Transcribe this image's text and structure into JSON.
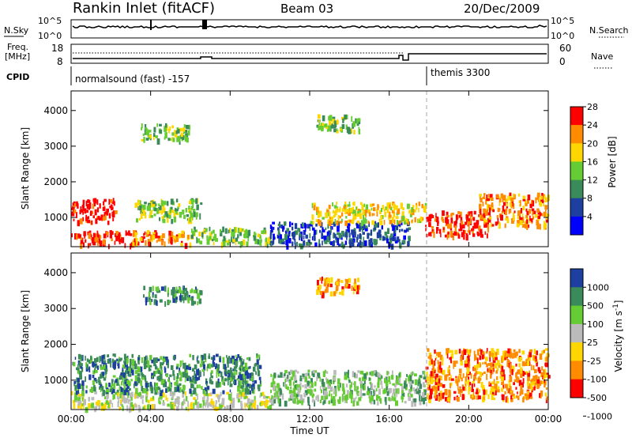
{
  "header": {
    "station": "Rankin Inlet (fitACF)",
    "beam": "Beam 03",
    "date": "20/Dec/2009"
  },
  "noise_panel": {
    "left_label": "N.Sky",
    "right_label": "N.Search",
    "left_ticks": [
      "10^5",
      "10^0"
    ],
    "right_ticks": [
      "10^5",
      "10^0"
    ]
  },
  "freq_panel": {
    "left_label_1": "Freq.",
    "left_label_2": "[MHz]",
    "right_label": "Nave",
    "left_ticks": [
      "18",
      "8"
    ],
    "right_ticks": [
      "60",
      "0"
    ]
  },
  "cpid_panel": {
    "label": "CPID",
    "modes": [
      {
        "name": "normalsound (fast) -157",
        "start": "00:00",
        "end": "18:00"
      },
      {
        "name": "themis 3300",
        "start": "18:00",
        "end": "24:00"
      }
    ]
  },
  "x_axis": {
    "label": "Time UT",
    "ticks": [
      "00:00",
      "04:00",
      "08:00",
      "12:00",
      "16:00",
      "20:00",
      "00:00"
    ]
  },
  "chart_data": [
    {
      "type": "heatmap",
      "quantity": "power",
      "ylabel": "Slant Range [km]",
      "xlim_hours": [
        0,
        24
      ],
      "ylim_km": [
        180,
        4550
      ],
      "y_ticks": [
        "1000",
        "2000",
        "3000",
        "4000"
      ],
      "colorbar_label": "Power [dB]",
      "colorbar_ticks": [
        "4",
        "8",
        "12",
        "16",
        "20",
        "24",
        "28"
      ],
      "colorbar_colors": [
        "#0000ff",
        "#1c3fa0",
        "#3a8a5a",
        "#66cc33",
        "#ffd700",
        "#ff8c00",
        "#ff0000"
      ],
      "regions": [
        {
          "t": [
            0.0,
            3.2
          ],
          "r": [
            250,
            650
          ],
          "level": 6
        },
        {
          "t": [
            0.0,
            2.2
          ],
          "r": [
            900,
            1550
          ],
          "level": 6
        },
        {
          "t": [
            3.0,
            6.0
          ],
          "r": [
            280,
            650
          ],
          "level": 5
        },
        {
          "t": [
            6.0,
            10.0
          ],
          "r": [
            300,
            750
          ],
          "level": 3
        },
        {
          "t": [
            3.2,
            6.5
          ],
          "r": [
            950,
            1550
          ],
          "level": 3
        },
        {
          "t": [
            3.5,
            6.0
          ],
          "r": [
            3200,
            3650
          ],
          "level": 3
        },
        {
          "t": [
            12.3,
            14.5
          ],
          "r": [
            3450,
            3900
          ],
          "level": 3
        },
        {
          "t": [
            10.0,
            17.0
          ],
          "r": [
            250,
            900
          ],
          "level": 1
        },
        {
          "t": [
            12.0,
            17.8
          ],
          "r": [
            900,
            1450
          ],
          "level": 4
        },
        {
          "t": [
            17.8,
            21.0
          ],
          "r": [
            500,
            1200
          ],
          "level": 6
        },
        {
          "t": [
            20.5,
            24.0
          ],
          "r": [
            800,
            1700
          ],
          "level": 5
        }
      ]
    },
    {
      "type": "heatmap",
      "quantity": "velocity",
      "ylabel": "Slant Range [km]",
      "xlim_hours": [
        0,
        24
      ],
      "ylim_km": [
        180,
        4550
      ],
      "y_ticks": [
        "1000",
        "2000",
        "3000",
        "4000"
      ],
      "colorbar_label": "Velocity [m s^-1]",
      "colorbar_ticks": [
        "1000",
        "500",
        "100",
        "25",
        "-25",
        "-100",
        "-500",
        "-1000"
      ],
      "colorbar_colors": [
        "#1c3fa0",
        "#3a8a5a",
        "#66cc33",
        "#bbbbbb",
        "#ffd700",
        "#ff8c00",
        "#ff0000"
      ],
      "regions": [
        {
          "t": [
            0.0,
            10.0
          ],
          "r": [
            250,
            700
          ],
          "level": 3
        },
        {
          "t": [
            0.0,
            9.5
          ],
          "r": [
            700,
            1750
          ],
          "level": 1
        },
        {
          "t": [
            3.5,
            6.5
          ],
          "r": [
            3200,
            3650
          ],
          "level": 1
        },
        {
          "t": [
            12.3,
            14.5
          ],
          "r": [
            3450,
            3900
          ],
          "level": 5
        },
        {
          "t": [
            10.0,
            17.8
          ],
          "r": [
            400,
            1300
          ],
          "level": 2
        },
        {
          "t": [
            17.8,
            24.0
          ],
          "r": [
            500,
            1900
          ],
          "level": 5
        }
      ]
    }
  ]
}
